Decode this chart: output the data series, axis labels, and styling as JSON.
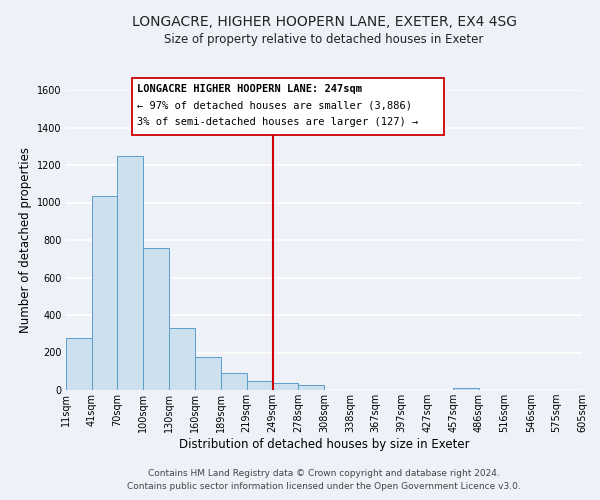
{
  "title": "LONGACRE, HIGHER HOOPERN LANE, EXETER, EX4 4SG",
  "subtitle": "Size of property relative to detached houses in Exeter",
  "xlabel": "Distribution of detached houses by size in Exeter",
  "ylabel": "Number of detached properties",
  "bar_edges": [
    11,
    41,
    70,
    100,
    130,
    160,
    189,
    219,
    249,
    278,
    308,
    338,
    367,
    397,
    427,
    457,
    486,
    516,
    546,
    575,
    605
  ],
  "bar_heights": [
    280,
    1035,
    1250,
    760,
    330,
    175,
    90,
    50,
    40,
    25,
    0,
    0,
    0,
    0,
    0,
    10,
    0,
    0,
    0,
    0
  ],
  "bar_color": "#cce0f0",
  "bar_edge_color": "#5a9ec8",
  "vline_x": 249,
  "vline_color": "#cc0000",
  "ylim": [
    0,
    1600
  ],
  "yticks": [
    0,
    200,
    400,
    600,
    800,
    1000,
    1200,
    1400,
    1600
  ],
  "xtick_labels": [
    "11sqm",
    "41sqm",
    "70sqm",
    "100sqm",
    "130sqm",
    "160sqm",
    "189sqm",
    "219sqm",
    "249sqm",
    "278sqm",
    "308sqm",
    "338sqm",
    "367sqm",
    "397sqm",
    "427sqm",
    "457sqm",
    "486sqm",
    "516sqm",
    "546sqm",
    "575sqm",
    "605sqm"
  ],
  "annotation_title": "LONGACRE HIGHER HOOPERN LANE: 247sqm",
  "annotation_line1": "← 97% of detached houses are smaller (3,886)",
  "annotation_line2": "3% of semi-detached houses are larger (127) →",
  "footer1": "Contains HM Land Registry data © Crown copyright and database right 2024.",
  "footer2": "Contains public sector information licensed under the Open Government Licence v3.0.",
  "background_color": "#eef2f8",
  "grid_color": "#ffffff",
  "title_fontsize": 10,
  "subtitle_fontsize": 8.5,
  "axis_label_fontsize": 8.5,
  "tick_fontsize": 7,
  "annotation_fontsize": 7.5,
  "footer_fontsize": 6.5
}
